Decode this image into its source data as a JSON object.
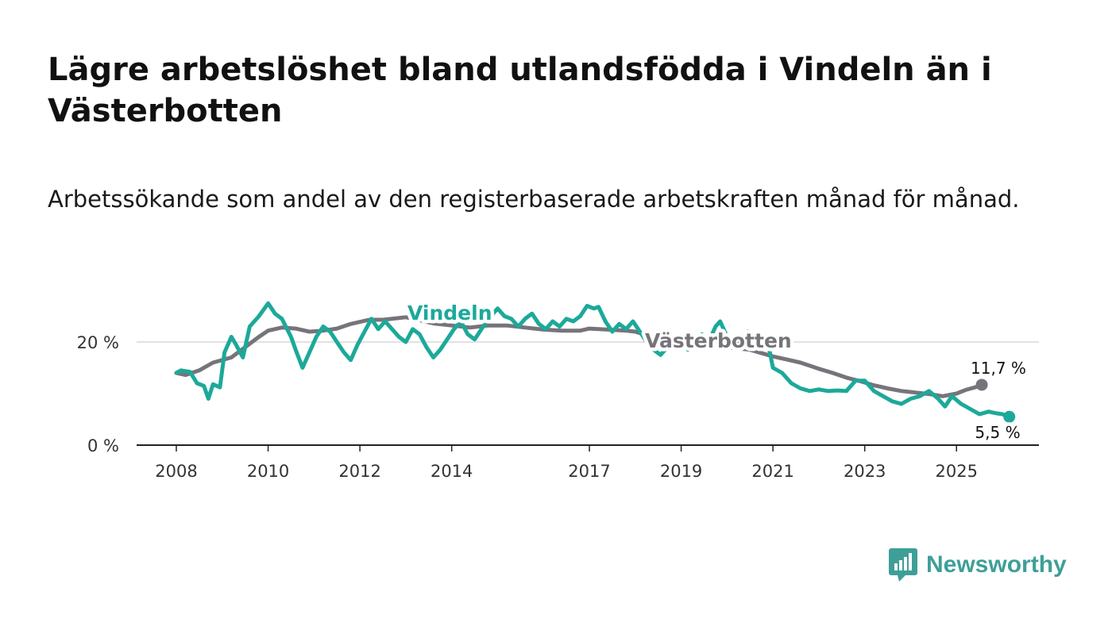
{
  "title": "Lägre arbetslöshet bland utlandsfödda i Vindeln än i Västerbotten",
  "subtitle": "Arbetssökande som andel av den registerbaserade arbetskraften månad för månad.",
  "logo": {
    "text": "Newsworthy",
    "icon": "newsworthy-bar-chart-icon",
    "color": "#3e9f98"
  },
  "chart_data": {
    "type": "line",
    "x_ticks": [
      2008,
      2010,
      2012,
      2014,
      2017,
      2019,
      2021,
      2023,
      2025
    ],
    "y_ticks": [
      0,
      20
    ],
    "y_tick_labels": [
      "0 %",
      "20 %"
    ],
    "ylim": [
      0,
      30
    ],
    "xlim": [
      2007.15,
      2026.75
    ],
    "grid": true,
    "legend": "inline labels",
    "series": [
      {
        "name": "Västerbotten",
        "color": "#76747a",
        "last_label": "11,7 %",
        "points": [
          [
            2008.0,
            14
          ],
          [
            2008.2,
            13.6
          ],
          [
            2008.5,
            14.5
          ],
          [
            2008.8,
            16
          ],
          [
            2009.2,
            17
          ],
          [
            2009.5,
            19
          ],
          [
            2009.8,
            21
          ],
          [
            2010.0,
            22.2
          ],
          [
            2010.3,
            22.8
          ],
          [
            2010.6,
            22.6
          ],
          [
            2010.9,
            22
          ],
          [
            2011.2,
            22.2
          ],
          [
            2011.5,
            22.6
          ],
          [
            2011.8,
            23.5
          ],
          [
            2012.2,
            24.3
          ],
          [
            2012.5,
            24.3
          ],
          [
            2012.8,
            24.6
          ],
          [
            2013.0,
            24.8
          ],
          [
            2013.3,
            24.2
          ],
          [
            2013.6,
            23.6
          ],
          [
            2014.0,
            23.2
          ],
          [
            2014.4,
            22.8
          ],
          [
            2014.8,
            23.2
          ],
          [
            2015.2,
            23.2
          ],
          [
            2015.6,
            22.8
          ],
          [
            2016.0,
            22.4
          ],
          [
            2016.4,
            22.2
          ],
          [
            2016.8,
            22.2
          ],
          [
            2017.0,
            22.6
          ],
          [
            2017.4,
            22.4
          ],
          [
            2017.8,
            22.2
          ],
          [
            2018.0,
            22.0
          ],
          [
            2018.5,
            20.6
          ],
          [
            2019.0,
            20.0
          ],
          [
            2019.5,
            19.5
          ],
          [
            2020.0,
            19.0
          ],
          [
            2020.5,
            18.5
          ],
          [
            2021.0,
            17.2
          ],
          [
            2021.3,
            16.6
          ],
          [
            2021.6,
            16.0
          ],
          [
            2022.0,
            14.8
          ],
          [
            2022.3,
            14.0
          ],
          [
            2022.6,
            13.1
          ],
          [
            2022.9,
            12.4
          ],
          [
            2023.2,
            11.6
          ],
          [
            2023.5,
            11.0
          ],
          [
            2023.8,
            10.5
          ],
          [
            2024.1,
            10.2
          ],
          [
            2024.4,
            9.9
          ],
          [
            2024.7,
            9.5
          ],
          [
            2025.0,
            10.0
          ],
          [
            2025.2,
            10.7
          ],
          [
            2025.4,
            11.2
          ],
          [
            2025.55,
            11.7
          ]
        ]
      },
      {
        "name": "Vindeln",
        "color": "#1ca99a",
        "last_label": "5,5 %",
        "points": [
          [
            2008.0,
            14
          ],
          [
            2008.1,
            14.5
          ],
          [
            2008.3,
            14.2
          ],
          [
            2008.45,
            12.0
          ],
          [
            2008.6,
            11.5
          ],
          [
            2008.7,
            9.0
          ],
          [
            2008.8,
            11.8
          ],
          [
            2008.95,
            11.2
          ],
          [
            2009.05,
            18.0
          ],
          [
            2009.2,
            21.0
          ],
          [
            2009.3,
            19.5
          ],
          [
            2009.45,
            17.0
          ],
          [
            2009.6,
            23.0
          ],
          [
            2009.8,
            25.0
          ],
          [
            2010.0,
            27.5
          ],
          [
            2010.15,
            25.5
          ],
          [
            2010.3,
            24.5
          ],
          [
            2010.5,
            21.0
          ],
          [
            2010.6,
            18.5
          ],
          [
            2010.75,
            15.0
          ],
          [
            2010.9,
            18.0
          ],
          [
            2011.05,
            21.0
          ],
          [
            2011.2,
            23.0
          ],
          [
            2011.35,
            22.0
          ],
          [
            2011.5,
            20.0
          ],
          [
            2011.65,
            18.0
          ],
          [
            2011.8,
            16.5
          ],
          [
            2011.95,
            19.5
          ],
          [
            2012.1,
            22.0
          ],
          [
            2012.25,
            24.5
          ],
          [
            2012.4,
            22.5
          ],
          [
            2012.55,
            24.0
          ],
          [
            2012.7,
            22.5
          ],
          [
            2012.85,
            21.0
          ],
          [
            2013.0,
            20.0
          ],
          [
            2013.15,
            22.5
          ],
          [
            2013.3,
            21.5
          ],
          [
            2013.45,
            19.0
          ],
          [
            2013.6,
            17.0
          ],
          [
            2013.75,
            18.5
          ],
          [
            2013.9,
            20.5
          ],
          [
            2014.05,
            22.5
          ],
          [
            2014.2,
            24.0
          ],
          [
            2014.35,
            21.5
          ],
          [
            2014.5,
            20.5
          ],
          [
            2014.65,
            22.5
          ],
          [
            2014.8,
            24.5
          ],
          [
            2015.0,
            26.5
          ],
          [
            2015.15,
            25.0
          ],
          [
            2015.3,
            24.5
          ],
          [
            2015.45,
            23.0
          ],
          [
            2015.6,
            24.5
          ],
          [
            2015.75,
            25.5
          ],
          [
            2015.9,
            23.5
          ],
          [
            2016.05,
            22.5
          ],
          [
            2016.2,
            24.0
          ],
          [
            2016.35,
            23.0
          ],
          [
            2016.5,
            24.5
          ],
          [
            2016.65,
            24.0
          ],
          [
            2016.8,
            25.0
          ],
          [
            2016.95,
            27.0
          ],
          [
            2017.1,
            26.5
          ],
          [
            2017.2,
            26.8
          ],
          [
            2017.35,
            24.0
          ],
          [
            2017.5,
            22.0
          ],
          [
            2017.65,
            23.5
          ],
          [
            2017.8,
            22.5
          ],
          [
            2017.95,
            24.0
          ],
          [
            2018.1,
            22.0
          ],
          [
            2018.25,
            20.0
          ],
          [
            2018.4,
            18.5
          ],
          [
            2018.55,
            17.5
          ],
          [
            2018.7,
            19.0
          ],
          [
            2018.85,
            21.0
          ],
          [
            2019.0,
            20.5
          ],
          [
            2019.15,
            18.5
          ],
          [
            2019.3,
            20.0
          ],
          [
            2019.45,
            21.5
          ],
          [
            2019.6,
            20.0
          ],
          [
            2019.75,
            23.0
          ],
          [
            2019.85,
            24.0
          ],
          [
            2020.0,
            21.0
          ],
          [
            2020.15,
            19.0
          ],
          [
            2020.3,
            20.5
          ],
          [
            2020.45,
            22.0
          ],
          [
            2020.6,
            20.5
          ],
          [
            2020.75,
            21.5
          ],
          [
            2020.9,
            19.5
          ],
          [
            2021.0,
            15.0
          ],
          [
            2021.2,
            14.0
          ],
          [
            2021.4,
            12.0
          ],
          [
            2021.6,
            11.0
          ],
          [
            2021.8,
            10.5
          ],
          [
            2022.0,
            10.8
          ],
          [
            2022.2,
            10.5
          ],
          [
            2022.4,
            10.6
          ],
          [
            2022.6,
            10.5
          ],
          [
            2022.8,
            12.5
          ],
          [
            2023.0,
            12.5
          ],
          [
            2023.2,
            10.5
          ],
          [
            2023.4,
            9.5
          ],
          [
            2023.6,
            8.5
          ],
          [
            2023.8,
            8.0
          ],
          [
            2024.0,
            9.0
          ],
          [
            2024.2,
            9.5
          ],
          [
            2024.4,
            10.5
          ],
          [
            2024.6,
            9.0
          ],
          [
            2024.75,
            7.5
          ],
          [
            2024.9,
            9.5
          ],
          [
            2025.1,
            8.0
          ],
          [
            2025.3,
            7.0
          ],
          [
            2025.5,
            6.0
          ],
          [
            2025.7,
            6.5
          ],
          [
            2025.85,
            6.2
          ],
          [
            2026.0,
            6.0
          ],
          [
            2026.15,
            5.5
          ]
        ]
      }
    ]
  }
}
